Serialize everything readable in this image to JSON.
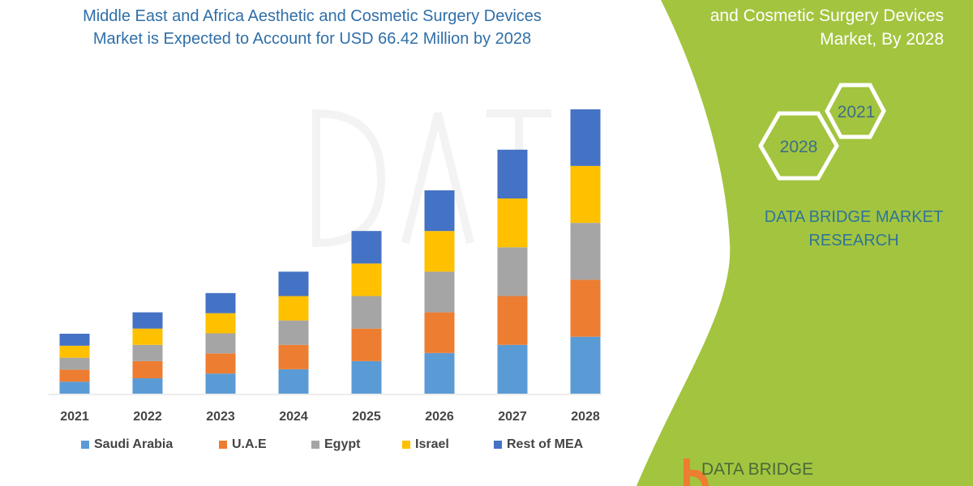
{
  "title": {
    "line1": "Middle East and Africa Aesthetic and Cosmetic Surgery Devices",
    "line2": "Market is Expected to Account for USD 66.42 Million by 2028"
  },
  "side_panel": {
    "heading_line1": "and Cosmetic Surgery Devices",
    "heading_line2": "Market, By 2028",
    "hex_years": [
      "2021",
      "2028"
    ],
    "brand_line1": "DATA BRIDGE MARKET",
    "brand_line2": "RESEARCH",
    "logo_text": "DATA BRIDGE",
    "color": "#a3c43f"
  },
  "chart_data": {
    "type": "bar",
    "stacked": true,
    "categories": [
      "2021",
      "2022",
      "2023",
      "2024",
      "2025",
      "2026",
      "2027",
      "2028"
    ],
    "series": [
      {
        "name": "Saudi Arabia",
        "color": "#5b9bd5",
        "values": [
          2.8,
          3.6,
          4.7,
          5.7,
          7.6,
          9.5,
          11.4,
          13.3
        ]
      },
      {
        "name": "U.A.E",
        "color": "#ed7d31",
        "values": [
          2.8,
          4.0,
          4.7,
          5.7,
          7.6,
          9.5,
          11.4,
          13.3
        ]
      },
      {
        "name": "Egypt",
        "color": "#a5a5a5",
        "values": [
          2.8,
          3.8,
          4.7,
          5.7,
          7.6,
          9.5,
          11.4,
          13.3
        ]
      },
      {
        "name": "Israel",
        "color": "#ffc000",
        "values": [
          2.8,
          3.8,
          4.7,
          5.7,
          7.6,
          9.5,
          11.4,
          13.3
        ]
      },
      {
        "name": "Rest of MEA",
        "color": "#4472c4",
        "values": [
          2.8,
          3.8,
          4.7,
          5.7,
          7.6,
          9.5,
          11.4,
          13.22
        ]
      }
    ],
    "xlabel": "",
    "ylabel": "",
    "grid": false,
    "legend": "bottom"
  }
}
